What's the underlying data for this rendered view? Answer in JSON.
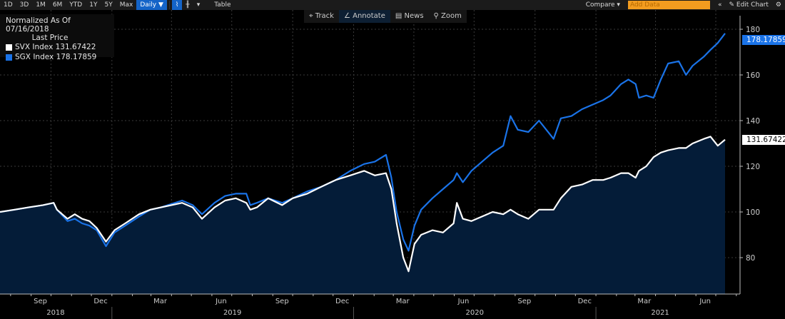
{
  "toolbar": {
    "ranges": [
      "1D",
      "3D",
      "1M",
      "6M",
      "YTD",
      "1Y",
      "5Y",
      "Max"
    ],
    "frequency": "Daily ▼",
    "table_label": "Table",
    "compare_label": "Compare ▾",
    "add_data_placeholder": "Add Data",
    "collapse_label": "«",
    "edit_chart_label": "✎ Edit Chart",
    "settings_icon": "⚙"
  },
  "subbar": {
    "track": "⌖ Track",
    "annotate": "∠ Annotate",
    "news": "▤ News",
    "zoom": "⚲ Zoom"
  },
  "legend": {
    "title": "Normalized As Of 07/16/2018",
    "subtitle": "Last Price",
    "items": [
      {
        "label": "SVX Index  131.67422",
        "color": "#ffffff"
      },
      {
        "label": "SGX Index  178.17859",
        "color": "#1a73e8"
      }
    ]
  },
  "chart_data": {
    "type": "line",
    "x_range": [
      "2018-07-16",
      "2021-07-15"
    ],
    "ylim": [
      65,
      185
    ],
    "y_ticks": [
      "80",
      "100",
      "120",
      "140",
      "160",
      "180"
    ],
    "month_labels": [
      {
        "label": "Sep",
        "date": "2018-09-15"
      },
      {
        "label": "Dec",
        "date": "2018-12-15"
      },
      {
        "label": "Mar",
        "date": "2019-03-15"
      },
      {
        "label": "Jun",
        "date": "2019-06-15"
      },
      {
        "label": "Sep",
        "date": "2019-09-15"
      },
      {
        "label": "Dec",
        "date": "2019-12-15"
      },
      {
        "label": "Mar",
        "date": "2020-03-15"
      },
      {
        "label": "Jun",
        "date": "2020-06-15"
      },
      {
        "label": "Sep",
        "date": "2020-09-15"
      },
      {
        "label": "Dec",
        "date": "2020-12-15"
      },
      {
        "label": "Mar",
        "date": "2021-03-15"
      },
      {
        "label": "Jun",
        "date": "2021-06-15"
      }
    ],
    "year_labels": [
      {
        "label": "2018",
        "date": "2018-10-08"
      },
      {
        "label": "2019",
        "date": "2019-07-02"
      },
      {
        "label": "2020",
        "date": "2020-07-02"
      },
      {
        "label": "2021",
        "date": "2021-04-08"
      }
    ],
    "grid": true,
    "dates": [
      "2018-07-16",
      "2018-08-07",
      "2018-08-28",
      "2018-09-19",
      "2018-10-05",
      "2018-10-10",
      "2018-10-26",
      "2018-11-06",
      "2018-11-17",
      "2018-11-28",
      "2018-12-09",
      "2018-12-23",
      "2019-01-05",
      "2019-01-21",
      "2019-02-11",
      "2019-02-28",
      "2019-03-16",
      "2019-04-01",
      "2019-04-17",
      "2019-05-03",
      "2019-05-17",
      "2019-06-05",
      "2019-06-21",
      "2019-07-07",
      "2019-07-23",
      "2019-07-29",
      "2019-08-08",
      "2019-08-25",
      "2019-09-15",
      "2019-10-01",
      "2019-10-23",
      "2019-11-13",
      "2019-12-05",
      "2019-12-27",
      "2020-01-17",
      "2020-02-02",
      "2020-02-19",
      "2020-02-27",
      "2020-03-06",
      "2020-03-16",
      "2020-03-24",
      "2020-04-02",
      "2020-04-12",
      "2020-04-29",
      "2020-05-15",
      "2020-05-31",
      "2020-06-05",
      "2020-06-14",
      "2020-06-27",
      "2020-07-13",
      "2020-07-29",
      "2020-08-14",
      "2020-08-25",
      "2020-09-05",
      "2020-09-21",
      "2020-10-07",
      "2020-10-18",
      "2020-10-29",
      "2020-11-09",
      "2020-11-25",
      "2020-12-11",
      "2020-12-27",
      "2021-01-12",
      "2021-01-23",
      "2021-02-08",
      "2021-02-19",
      "2021-03-02",
      "2021-03-07",
      "2021-03-18",
      "2021-03-29",
      "2021-04-09",
      "2021-04-20",
      "2021-05-06",
      "2021-05-17",
      "2021-05-27",
      "2021-06-13",
      "2021-06-23",
      "2021-07-04",
      "2021-07-15"
    ],
    "series": [
      {
        "name": "SVX Index",
        "color": "#ffffff",
        "last": "131.67422",
        "values": [
          100,
          101,
          102,
          103,
          104,
          101,
          97,
          99,
          97,
          96,
          93,
          87,
          92,
          95,
          99,
          101,
          102,
          103,
          104,
          102,
          97,
          102,
          105,
          106,
          104,
          101,
          102,
          106,
          103,
          106,
          108,
          111,
          114,
          116,
          118,
          116,
          117,
          110,
          95,
          80,
          74,
          86,
          90,
          92,
          91,
          95,
          104,
          97,
          96,
          98,
          100,
          99,
          101,
          99,
          97,
          101,
          101,
          101,
          106,
          111,
          112,
          114,
          114,
          115,
          117,
          117,
          115,
          118,
          120,
          124,
          126,
          127,
          128,
          128,
          130,
          132,
          133,
          129,
          131.67
        ]
      },
      {
        "name": "SGX Index",
        "color": "#1a73e8",
        "last": "178.17859",
        "values": [
          100,
          101,
          102,
          103,
          104,
          101,
          96,
          97,
          95,
          94,
          92,
          85,
          91,
          94,
          98,
          101,
          102,
          103.5,
          105,
          103,
          99,
          104,
          107,
          108,
          108,
          103,
          104,
          106,
          104,
          106,
          109,
          111,
          114,
          118,
          121,
          122,
          125,
          115,
          100,
          88,
          83,
          94,
          101,
          106,
          110,
          114,
          117,
          113,
          118,
          122,
          126,
          129,
          142,
          136,
          135,
          140,
          136,
          132,
          141,
          142,
          145,
          147,
          149,
          151,
          156,
          158,
          156,
          150,
          151,
          150,
          158,
          165,
          166,
          160,
          164,
          168,
          171,
          174,
          178.18
        ]
      }
    ]
  }
}
